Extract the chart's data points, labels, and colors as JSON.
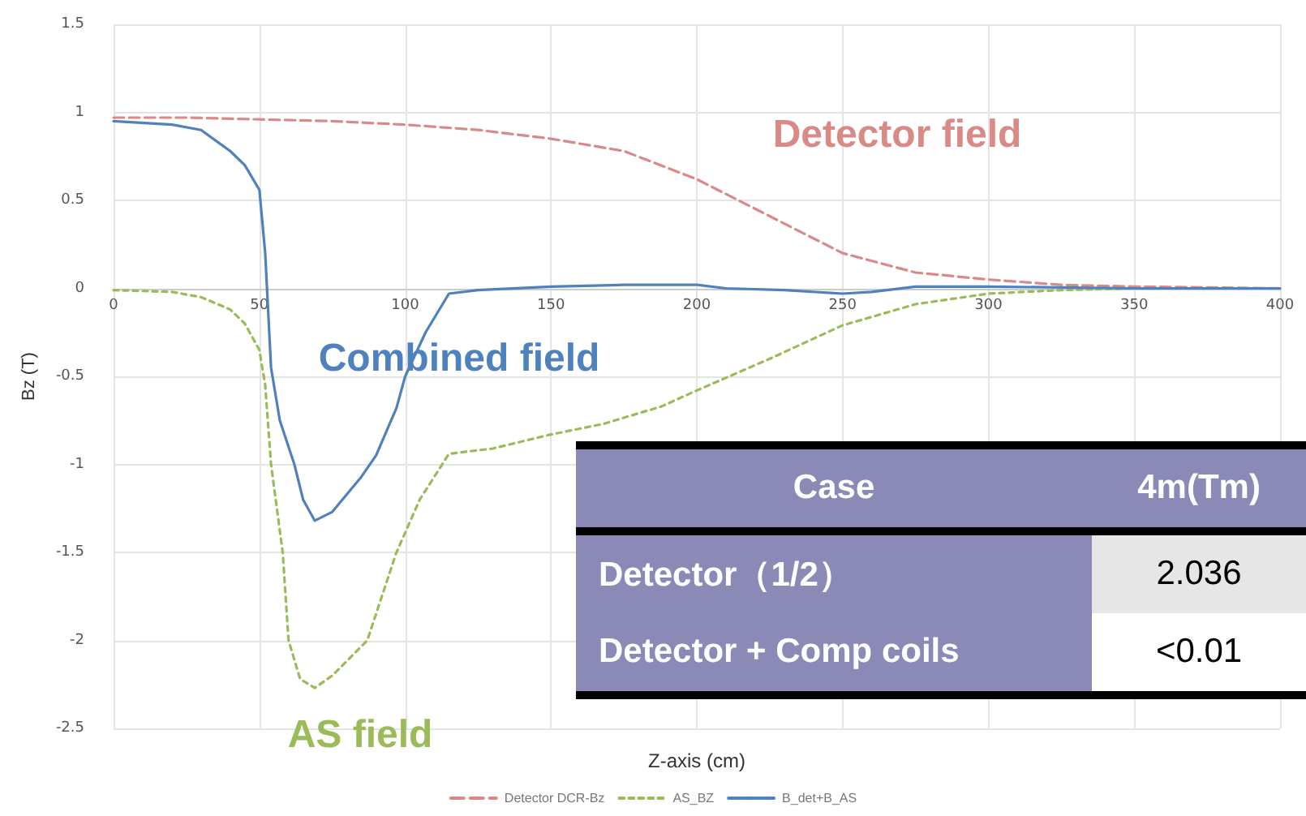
{
  "chart_data": {
    "type": "line",
    "xlabel": "Z-axis (cm)",
    "ylabel": "Bz (T)",
    "xlim": [
      0,
      400
    ],
    "xticks": [
      0,
      50,
      100,
      150,
      200,
      250,
      300,
      350,
      400
    ],
    "ylim": [
      -2.5,
      1.5
    ],
    "yticks": [
      -2.5,
      -2,
      -1.5,
      -1,
      -0.5,
      0,
      0.5,
      1,
      1.5
    ],
    "grid": true,
    "legend": "bottom",
    "marker": "none",
    "series": [
      {
        "name": "Detector DCR-Bz",
        "color": "#d98a87",
        "line_style": "dashed",
        "x": [
          0,
          25,
          50,
          75,
          100,
          125,
          150,
          175,
          200,
          225,
          250,
          275,
          300,
          325,
          350,
          400
        ],
        "values": [
          0.97,
          0.97,
          0.96,
          0.95,
          0.93,
          0.9,
          0.85,
          0.78,
          0.62,
          0.41,
          0.2,
          0.09,
          0.05,
          0.02,
          0.01,
          0
        ]
      },
      {
        "name": "AS_BZ",
        "color": "#9bbb59",
        "line_style": "dotted",
        "x": [
          0,
          20,
          30,
          40,
          45,
          50,
          52,
          54,
          58,
          60,
          64,
          69,
          75,
          87,
          97,
          105,
          115,
          130,
          150,
          168,
          188,
          200,
          225,
          250,
          275,
          300,
          325,
          350,
          400
        ],
        "values": [
          -0.01,
          -0.02,
          -0.05,
          -0.12,
          -0.2,
          -0.35,
          -0.55,
          -1,
          -1.5,
          -2,
          -2.22,
          -2.27,
          -2.2,
          -2,
          -1.5,
          -1.2,
          -0.94,
          -0.91,
          -0.83,
          -0.77,
          -0.67,
          -0.58,
          -0.4,
          -0.21,
          -0.09,
          -0.03,
          -0.01,
          0,
          0
        ]
      },
      {
        "name": "B_det+B_AS",
        "color": "#4f81bd",
        "line_style": "solid",
        "x": [
          0,
          20,
          30,
          40,
          45,
          50,
          52,
          54,
          57,
          62,
          65,
          69,
          75,
          85,
          90,
          97,
          100,
          107,
          115,
          125,
          150,
          175,
          200,
          210,
          230,
          250,
          260,
          275,
          300,
          350,
          400
        ],
        "values": [
          0.95,
          0.93,
          0.9,
          0.78,
          0.7,
          0.56,
          0.2,
          -0.45,
          -0.75,
          -1,
          -1.2,
          -1.32,
          -1.27,
          -1.07,
          -0.95,
          -0.68,
          -0.5,
          -0.25,
          -0.03,
          -0.01,
          0.01,
          0.02,
          0.02,
          0,
          -0.01,
          -0.03,
          -0.02,
          0.01,
          0.01,
          0,
          0
        ]
      }
    ],
    "annotations": [
      "Detector field",
      "AS field",
      "Combined field",
      "Case",
      "4m(Tm)",
      "Detector（1/2）",
      "2.036",
      "Detector + Comp coils",
      "<0.01"
    ]
  }
}
